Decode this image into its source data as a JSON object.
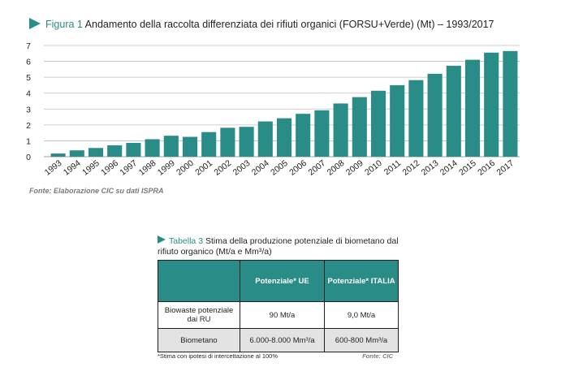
{
  "figure": {
    "label": "Figura 1",
    "title": "Andamento della raccolta differenziata dei rifiuti organici (FORSU+Verde) (Mt) – 1993/2017",
    "source": "Fonte: Elaborazione CIC su dati ISPRA"
  },
  "chart_data": {
    "type": "bar",
    "title": "Andamento della raccolta differenziata dei rifiuti organici (FORSU+Verde) (Mt) – 1993/2017",
    "xlabel": "",
    "ylabel": "",
    "categories": [
      "1993",
      "1994",
      "1995",
      "1996",
      "1997",
      "1998",
      "1999",
      "2000",
      "2001",
      "2002",
      "2003",
      "2004",
      "2005",
      "2006",
      "2007",
      "2008",
      "2009",
      "2010",
      "2011",
      "2012",
      "2013",
      "2014",
      "2015",
      "2016",
      "2017"
    ],
    "values": [
      0.2,
      0.4,
      0.55,
      0.72,
      0.87,
      1.1,
      1.32,
      1.25,
      1.55,
      1.82,
      1.88,
      2.22,
      2.42,
      2.7,
      2.92,
      3.35,
      3.75,
      4.15,
      4.5,
      4.82,
      5.22,
      5.72,
      6.1,
      6.55,
      6.65
    ],
    "yticks": [
      0,
      1,
      2,
      3,
      4,
      5,
      6,
      7
    ],
    "ylim": [
      0,
      7
    ],
    "grid": true,
    "bar_color": "#2a8c87",
    "grid_color": "#bfbfbf"
  },
  "table": {
    "label": "Tabella 3",
    "title": "Stima della produzione potenziale di biometano dal rifiuto organico (Mt/a e Mm³/a)",
    "headers": [
      "",
      "Potenziale* UE",
      "Potenziale* ITALIA"
    ],
    "rows": [
      [
        "Biowaste potenziale dai RU",
        "90 Mt/a",
        "9,0 Mt/a"
      ],
      [
        "Biometano",
        "6.000-8.000 Mm³/a",
        "600-800 Mm³/a"
      ]
    ],
    "note": "*Stima con ipotesi di intercettazione al 100%",
    "source": "Fonte: CIC",
    "header_color": "#2a8c87"
  }
}
